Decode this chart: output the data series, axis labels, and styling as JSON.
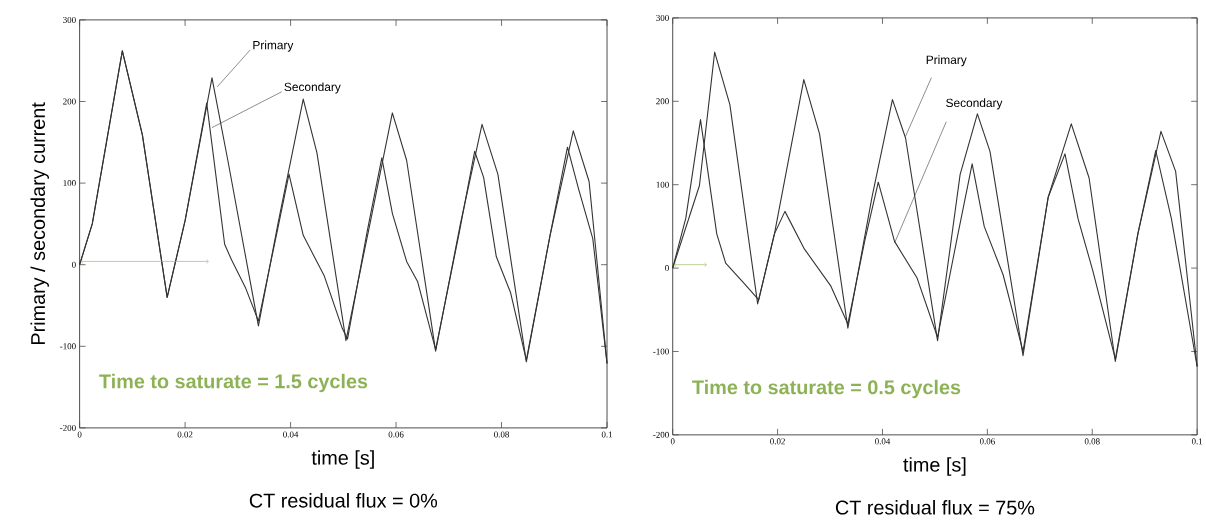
{
  "chart_data": [
    {
      "type": "line",
      "xlabel": "time [s]",
      "ylabel": "Primary / secondary current",
      "subtitle": "CT residual flux = 0%",
      "xlim": [
        0,
        0.1
      ],
      "ylim": [
        -200,
        300
      ],
      "xticks": [
        0,
        0.02,
        0.04,
        0.06,
        0.08,
        0.1
      ],
      "yticks": [
        -200,
        -100,
        0,
        100,
        200,
        300
      ],
      "annotations": [
        {
          "text": "Primary",
          "x": 0.0261,
          "y": 218
        },
        {
          "text": "Secondary",
          "x": 0.0251,
          "y": 168
        },
        "Time to saturate = 1.5 cycles"
      ],
      "series": [
        {
          "color": "#333333",
          "x": [
            0,
            0.0024,
            0.0081,
            0.0119,
            0.0166,
            0.02,
            0.0251,
            0.0281,
            0.0339,
            0.0376,
            0.0424,
            0.045,
            0.0505,
            0.0553,
            0.0593,
            0.062,
            0.0675,
            0.0722,
            0.0763,
            0.0793,
            0.0847,
            0.0892,
            0.0936,
            0.0966,
            0.1
          ],
          "values": [
            0,
            50,
            262,
            159,
            -40,
            54,
            229,
            128,
            -75,
            50,
            203,
            137,
            -93,
            58,
            186,
            128,
            -106,
            50,
            172,
            111,
            -119,
            36,
            164,
            102,
            -121
          ]
        },
        {
          "color": "#333333",
          "x": [
            0,
            0.0024,
            0.0081,
            0.0119,
            0.0166,
            0.02,
            0.0241,
            0.0275,
            0.0288,
            0.0315,
            0.0339,
            0.0376,
            0.0397,
            0.0424,
            0.0464,
            0.0498,
            0.0508,
            0.0545,
            0.0573,
            0.0593,
            0.062,
            0.0641,
            0.0675,
            0.072,
            0.0749,
            0.0766,
            0.079,
            0.0817,
            0.0847,
            0.0892,
            0.0925,
            0.0946,
            0.0973,
            0.1
          ],
          "values": [
            0,
            50,
            262,
            159,
            -40,
            54,
            198,
            25,
            6,
            -29,
            -69,
            45,
            111,
            36,
            -14,
            -78,
            -91,
            40,
            131,
            63,
            4,
            -21,
            -104,
            40,
            139,
            107,
            10,
            -34,
            -117,
            36,
            144,
            93,
            32,
            -121
          ]
        }
      ]
    },
    {
      "type": "line",
      "xlabel": "time [s]",
      "subtitle": "CT residual flux = 75%",
      "xlim": [
        0,
        0.1
      ],
      "ylim": [
        -200,
        300
      ],
      "xticks": [
        0,
        0.02,
        0.04,
        0.06,
        0.08,
        0.1
      ],
      "yticks": [
        -200,
        -100,
        0,
        100,
        200,
        300
      ],
      "annotations": [
        {
          "text": "Primary",
          "x": 0.0444,
          "y": 158
        },
        {
          "text": "Secondary",
          "x": 0.0423,
          "y": 30
        },
        "Time to saturate = 0.5 cycles"
      ],
      "series": [
        {
          "color": "#333333",
          "x": [
            0,
            0.0051,
            0.008,
            0.0109,
            0.0162,
            0.0194,
            0.025,
            0.028,
            0.0334,
            0.038,
            0.0419,
            0.0444,
            0.0505,
            0.0548,
            0.0581,
            0.0605,
            0.0668,
            0.0716,
            0.076,
            0.0794,
            0.0844,
            0.0887,
            0.0931,
            0.0959,
            0.1
          ],
          "values": [
            0,
            99,
            259,
            196,
            -43,
            41,
            226,
            161,
            -72,
            85,
            202,
            156,
            -87,
            112,
            185,
            140,
            -105,
            85,
            173,
            108,
            -112,
            41,
            164,
            116,
            -118
          ]
        },
        {
          "color": "#333333",
          "x": [
            0,
            0.0025,
            0.0053,
            0.0084,
            0.0101,
            0.0137,
            0.0164,
            0.0194,
            0.0214,
            0.0251,
            0.0301,
            0.0334,
            0.0366,
            0.0392,
            0.0423,
            0.0466,
            0.0505,
            0.0544,
            0.0571,
            0.0594,
            0.063,
            0.0668,
            0.0716,
            0.0748,
            0.0773,
            0.0801,
            0.0844,
            0.0887,
            0.0921,
            0.0951,
            0.1
          ],
          "values": [
            0,
            60,
            178,
            41,
            6,
            -19,
            -38,
            41,
            68,
            23,
            -21,
            -67,
            32,
            103,
            32,
            -12,
            -83,
            41,
            125,
            50,
            -8,
            -100,
            85,
            137,
            59,
            -3,
            -109,
            41,
            141,
            59,
            -118
          ]
        }
      ]
    }
  ]
}
